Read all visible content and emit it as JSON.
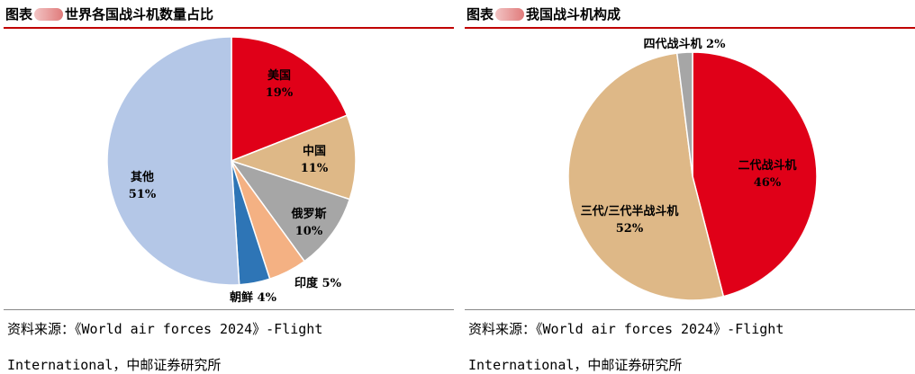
{
  "left": {
    "title_prefix": "图表",
    "title": "世界各国战斗机数量占比",
    "source_line1": "资料来源：《World air forces 2024》-Flight",
    "source_line2": "International，中邮证券研究所"
  },
  "right": {
    "title_prefix": "图表",
    "title": "我国战斗机构成",
    "source_line1": "资料来源：《World air forces 2024》-Flight",
    "source_line2": "International，中邮证券研究所"
  },
  "chart_data": [
    {
      "type": "pie",
      "title": "世界各国战斗机数量占比",
      "slices": [
        {
          "label": "美国",
          "value": 19,
          "display": "19%",
          "color": "#e00018"
        },
        {
          "label": "中国",
          "value": 11,
          "display": "11%",
          "color": "#deb887"
        },
        {
          "label": "俄罗斯",
          "value": 10,
          "display": "10%",
          "color": "#a6a6a6"
        },
        {
          "label": "印度",
          "value": 5,
          "display": "5%",
          "color": "#f4b183"
        },
        {
          "label": "朝鲜",
          "value": 4,
          "display": "4%",
          "color": "#2e75b6"
        },
        {
          "label": "其他",
          "value": 51,
          "display": "51%",
          "color": "#b4c7e7"
        }
      ]
    },
    {
      "type": "pie",
      "title": "我国战斗机构成",
      "slices": [
        {
          "label": "二代战斗机",
          "value": 46,
          "display": "46%",
          "color": "#e00018"
        },
        {
          "label": "三代/三代半战斗机",
          "value": 52,
          "display": "52%",
          "color": "#deb887"
        },
        {
          "label": "四代战斗机",
          "value": 2,
          "display": "2%",
          "color": "#a6a6a6"
        }
      ]
    }
  ]
}
